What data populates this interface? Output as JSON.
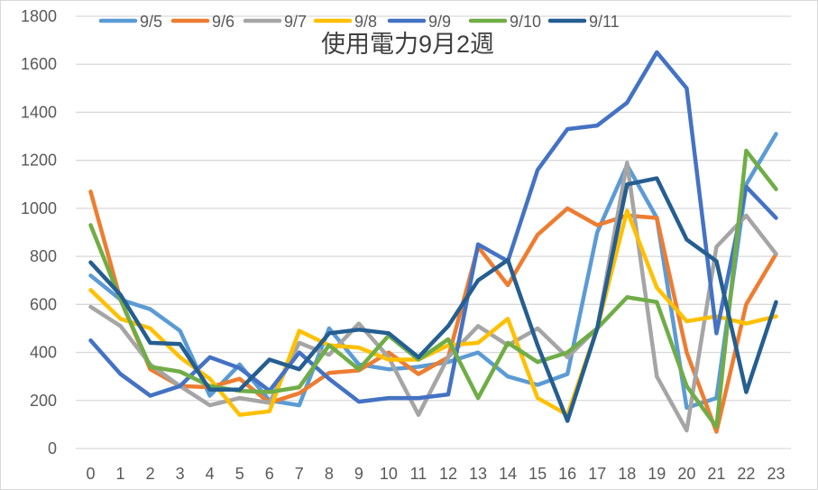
{
  "chart_data": {
    "type": "line",
    "title": "使用電力9月2週",
    "xlabel": "",
    "ylabel": "",
    "ylim": [
      0,
      1800
    ],
    "yticks": [
      0,
      200,
      400,
      600,
      800,
      1000,
      1200,
      1400,
      1600,
      1800
    ],
    "grid": true,
    "legend_position": "top",
    "categories": [
      "0",
      "1",
      "2",
      "3",
      "4",
      "5",
      "6",
      "7",
      "8",
      "9",
      "10",
      "11",
      "12",
      "13",
      "14",
      "15",
      "16",
      "17",
      "18",
      "19",
      "20",
      "21",
      "22",
      "23"
    ],
    "series": [
      {
        "name": "9/5",
        "color": "#5b9bd5",
        "values": [
          720,
          620,
          580,
          490,
          220,
          350,
          200,
          180,
          500,
          350,
          330,
          340,
          360,
          400,
          300,
          265,
          310,
          900,
          1180,
          960,
          170,
          210,
          1100,
          1310
        ]
      },
      {
        "name": "9/6",
        "color": "#ed7d31",
        "values": [
          1070,
          620,
          330,
          260,
          255,
          290,
          190,
          230,
          315,
          325,
          400,
          310,
          380,
          840,
          680,
          890,
          1000,
          930,
          970,
          960,
          400,
          70,
          600,
          810
        ]
      },
      {
        "name": "9/7",
        "color": "#a5a5a5",
        "values": [
          590,
          510,
          350,
          260,
          180,
          210,
          190,
          440,
          390,
          520,
          380,
          140,
          380,
          510,
          430,
          500,
          380,
          500,
          1190,
          300,
          75,
          840,
          970,
          810
        ]
      },
      {
        "name": "9/8",
        "color": "#ffc000",
        "values": [
          660,
          540,
          500,
          380,
          290,
          140,
          155,
          490,
          430,
          420,
          370,
          370,
          430,
          440,
          540,
          210,
          140,
          500,
          990,
          670,
          530,
          550,
          520,
          550
        ]
      },
      {
        "name": "9/9",
        "color": "#4472c4",
        "values": [
          450,
          310,
          220,
          260,
          380,
          335,
          240,
          400,
          290,
          195,
          210,
          210,
          225,
          850,
          780,
          1160,
          1330,
          1345,
          1440,
          1650,
          1500,
          480,
          1090,
          960
        ]
      },
      {
        "name": "9/10",
        "color": "#70ad47",
        "values": [
          930,
          620,
          340,
          320,
          260,
          240,
          235,
          255,
          430,
          330,
          470,
          370,
          455,
          210,
          440,
          360,
          400,
          500,
          630,
          610,
          260,
          90,
          1240,
          1080
        ]
      },
      {
        "name": "9/11",
        "color": "#255e91",
        "values": [
          775,
          640,
          440,
          435,
          245,
          245,
          370,
          330,
          480,
          495,
          480,
          380,
          510,
          700,
          785,
          430,
          115,
          500,
          1100,
          1125,
          870,
          780,
          235,
          610
        ]
      }
    ]
  }
}
